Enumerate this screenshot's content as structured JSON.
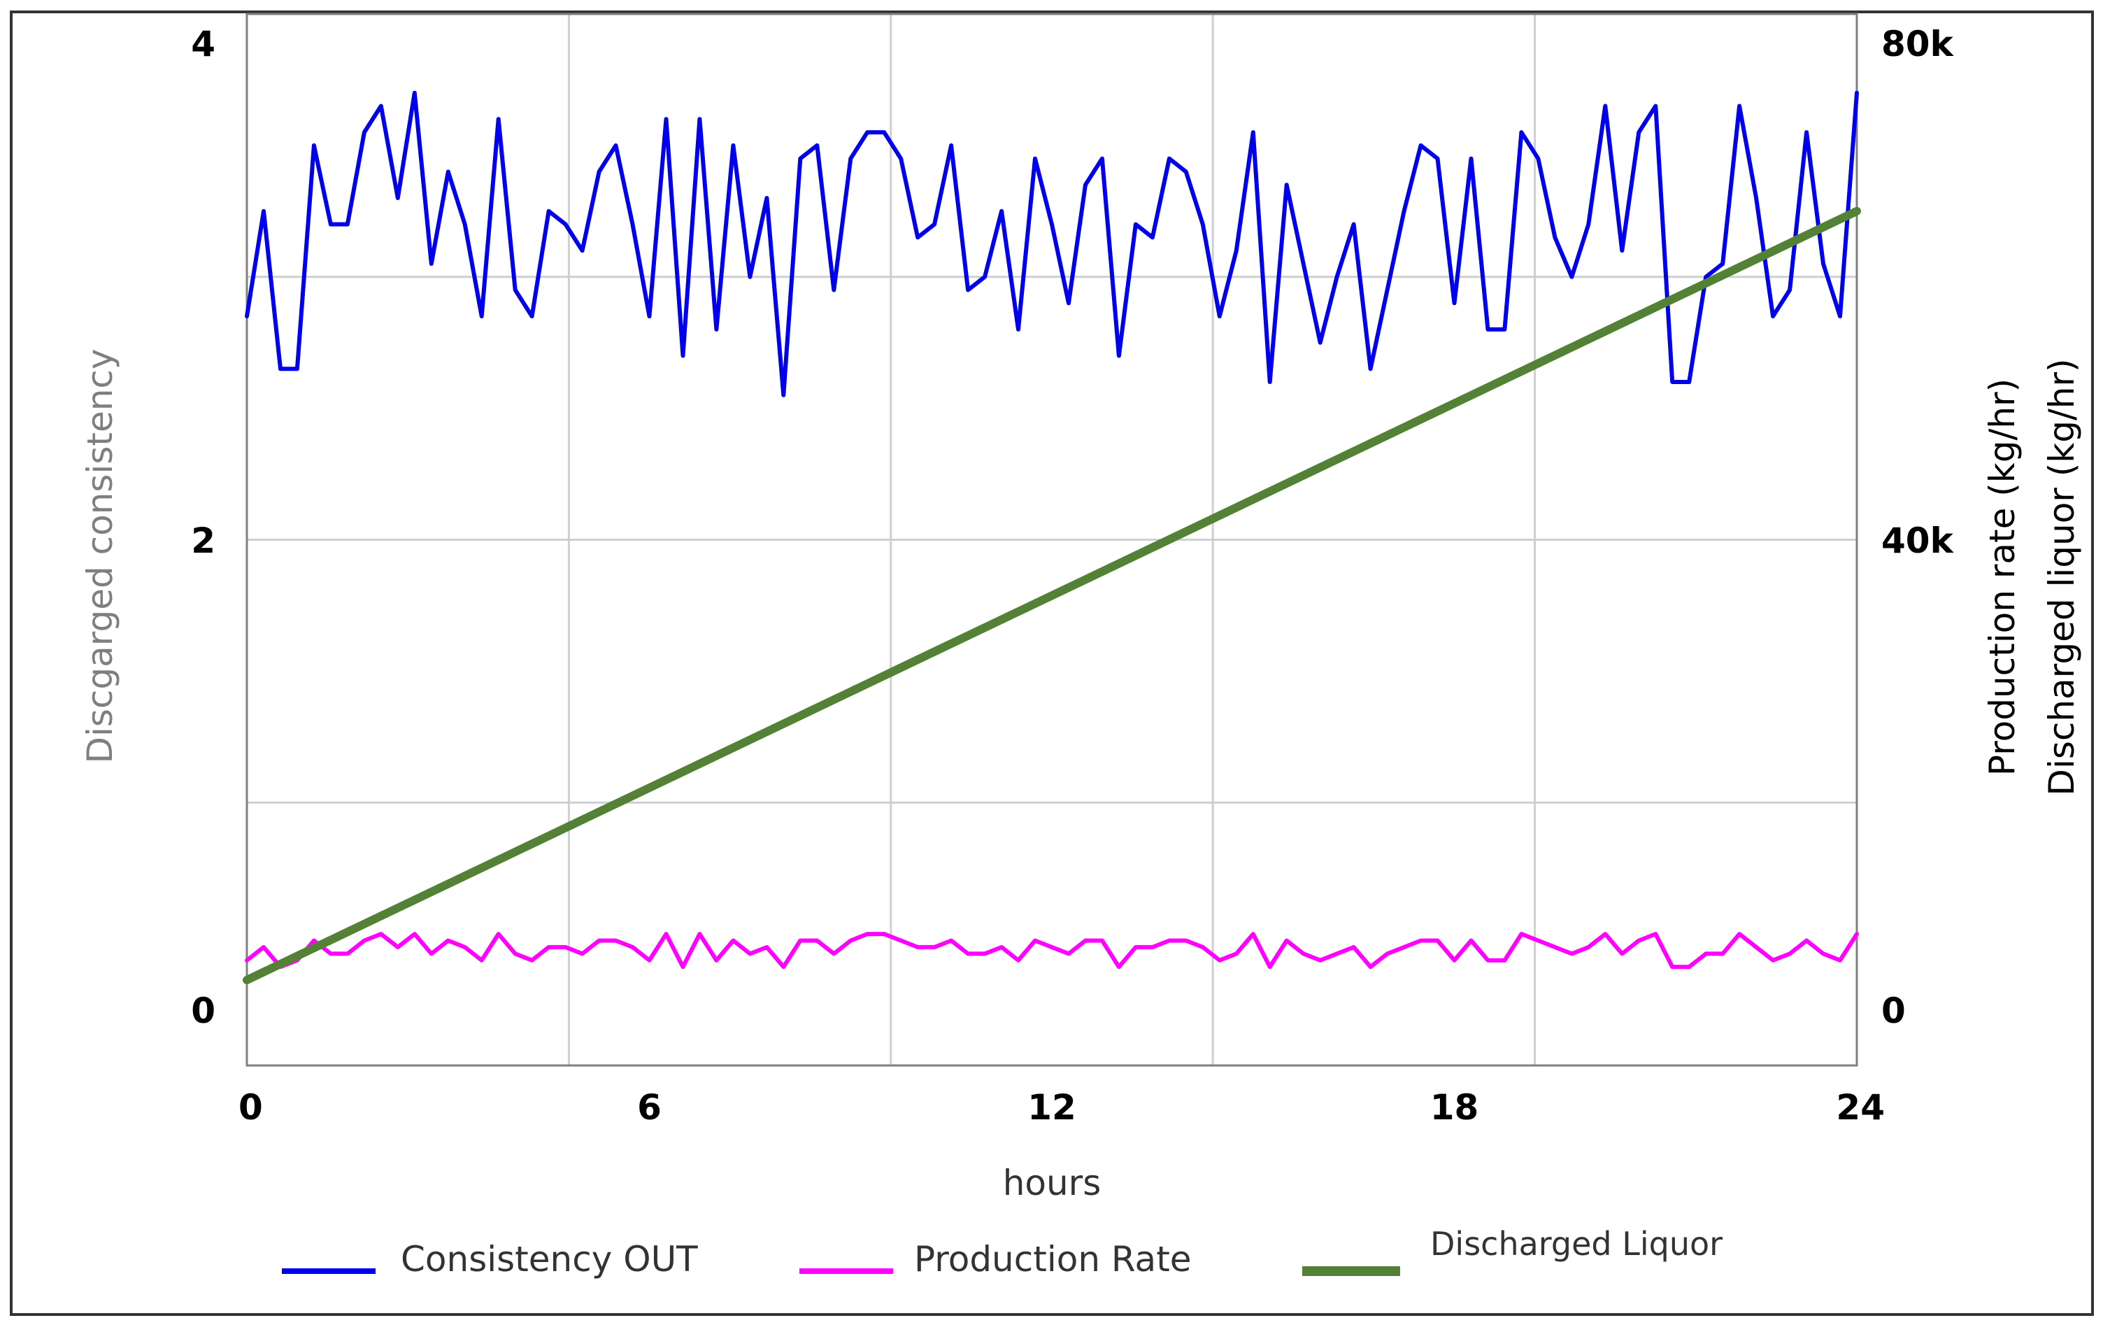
{
  "chart_data": {
    "type": "line",
    "xlabel": "hours",
    "ylabel_left": "Discgarged consistency",
    "ylabel_right": [
      "Production rate (kg/hr)",
      "Discharged liquor (kg/hr)"
    ],
    "x_ticks": [
      "0",
      "6",
      "12",
      "18",
      "24"
    ],
    "y_left_ticks": [
      "0",
      "2",
      "4"
    ],
    "y_right_ticks": [
      "0",
      "40k",
      "80k"
    ],
    "xlim": [
      0,
      24
    ],
    "ylim_left": [
      0,
      4
    ],
    "ylim_right": [
      0,
      80000
    ],
    "grid": true,
    "legend_position": "bottom",
    "series": [
      {
        "name": "Consistency OUT",
        "color": "#0000ee",
        "axis": "left",
        "values": [
          2.85,
          3.25,
          2.65,
          2.65,
          3.5,
          3.2,
          3.2,
          3.55,
          3.65,
          3.3,
          3.7,
          3.05,
          3.4,
          3.2,
          2.85,
          3.6,
          2.95,
          2.85,
          3.25,
          3.2,
          3.1,
          3.4,
          3.5,
          3.2,
          2.85,
          3.6,
          2.7,
          3.6,
          2.8,
          3.5,
          3.0,
          3.3,
          2.55,
          3.45,
          3.5,
          2.95,
          3.45,
          3.55,
          3.55,
          3.45,
          3.15,
          3.2,
          3.5,
          2.95,
          3.0,
          3.25,
          2.8,
          3.45,
          3.2,
          2.9,
          3.35,
          3.45,
          2.7,
          3.2,
          3.15,
          3.45,
          3.4,
          3.2,
          2.85,
          3.1,
          3.55,
          2.6,
          3.35,
          3.05,
          2.75,
          3.0,
          3.2,
          2.65,
          2.95,
          3.25,
          3.5,
          3.45,
          2.9,
          3.45,
          2.8,
          2.8,
          3.55,
          3.45,
          3.15,
          3.0,
          3.2,
          3.65,
          3.1,
          3.55,
          3.65,
          2.6,
          2.6,
          3.0,
          3.05,
          3.65,
          3.3,
          2.85,
          2.95,
          3.55,
          3.05,
          2.85,
          3.7
        ]
      },
      {
        "name": "Production Rate",
        "color": "#ff00ff",
        "axis": "right",
        "values": [
          8000,
          9000,
          7500,
          8000,
          9500,
          8500,
          8500,
          9500,
          10000,
          9000,
          10000,
          8500,
          9500,
          9000,
          8000,
          10000,
          8500,
          8000,
          9000,
          9000,
          8500,
          9500,
          9500,
          9000,
          8000,
          10000,
          7500,
          10000,
          8000,
          9500,
          8500,
          9000,
          7500,
          9500,
          9500,
          8500,
          9500,
          10000,
          10000,
          9500,
          9000,
          9000,
          9500,
          8500,
          8500,
          9000,
          8000,
          9500,
          9000,
          8500,
          9500,
          9500,
          7500,
          9000,
          9000,
          9500,
          9500,
          9000,
          8000,
          8500,
          10000,
          7500,
          9500,
          8500,
          8000,
          8500,
          9000,
          7500,
          8500,
          9000,
          9500,
          9500,
          8000,
          9500,
          8000,
          8000,
          10000,
          9500,
          9000,
          8500,
          9000,
          10000,
          8500,
          9500,
          10000,
          7500,
          7500,
          8500,
          8500,
          10000,
          9000,
          8000,
          8500,
          9500,
          8500,
          8000,
          10000
        ]
      },
      {
        "name": "Discharged Liquor",
        "color": "#538135",
        "axis": "right",
        "x": [
          0,
          24
        ],
        "values": [
          6500,
          65000
        ]
      }
    ]
  }
}
